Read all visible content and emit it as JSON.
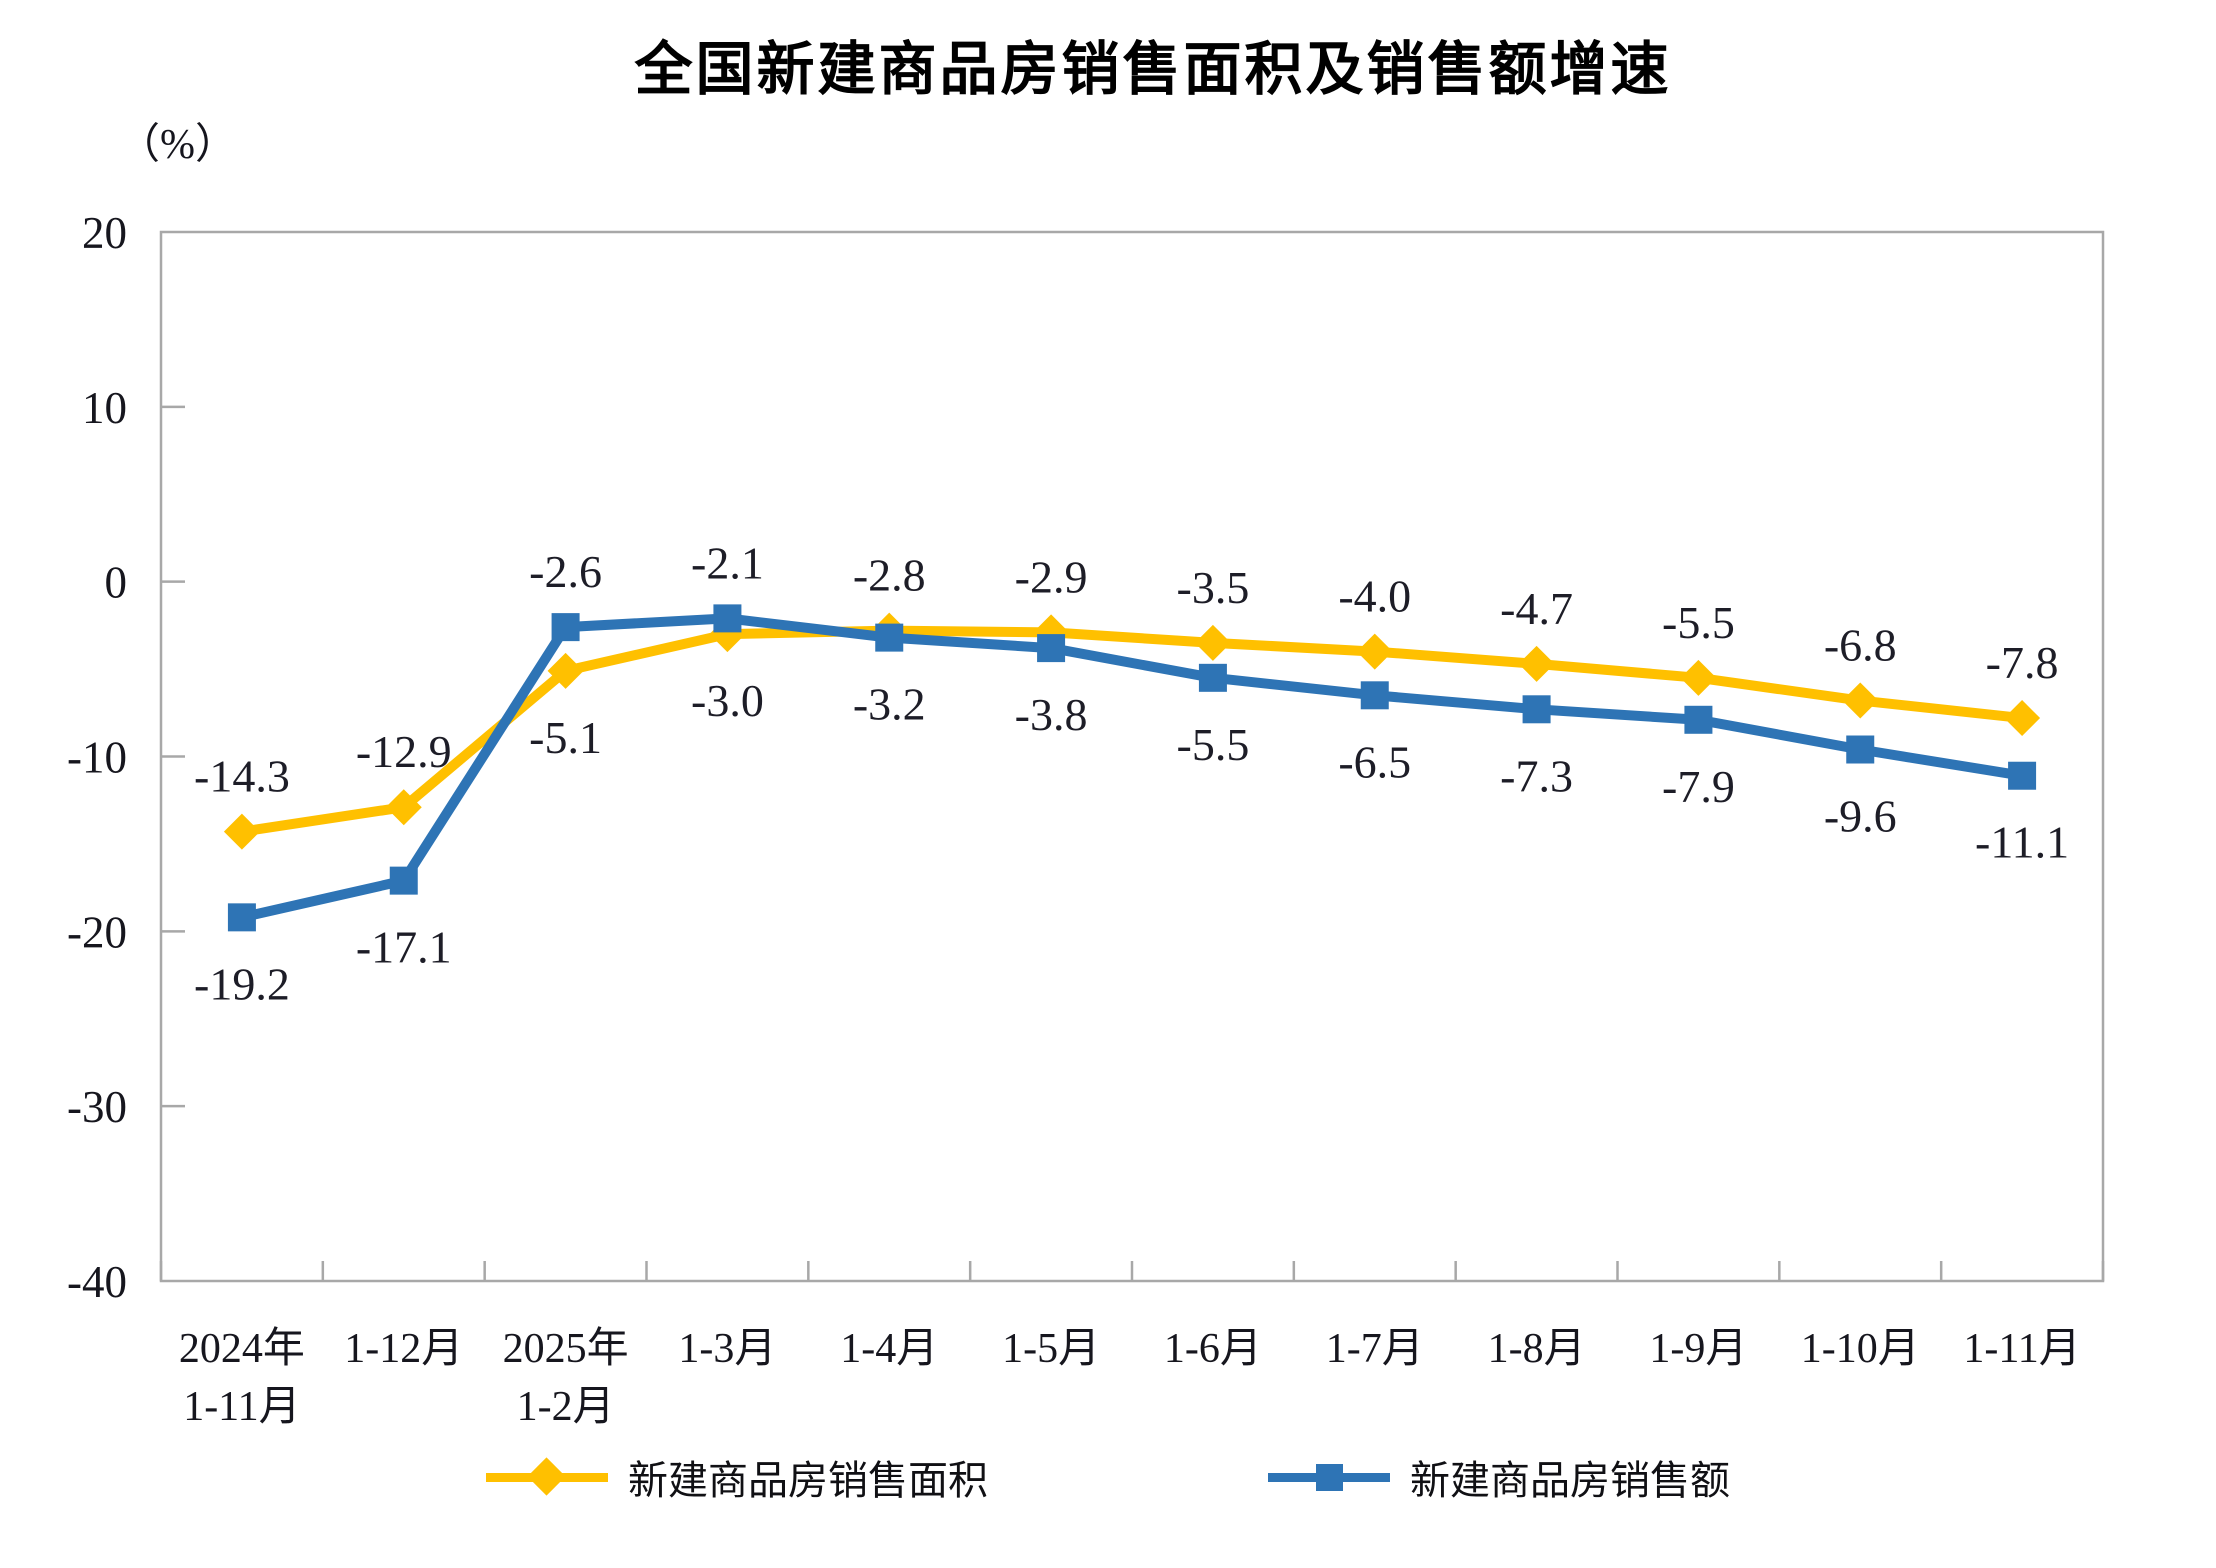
{
  "title": "全国新建商品房销售面积及销售额增速",
  "y_axis_unit": "（%）",
  "chart_data": {
    "type": "line",
    "title": "全国新建商品房销售面积及销售额增速",
    "ylabel": "（%）",
    "ylim": [
      -40,
      20
    ],
    "ytick_step": 10,
    "yticks": [
      20,
      10,
      0,
      -10,
      -20,
      -30,
      -40
    ],
    "grid": false,
    "legend_position": "bottom",
    "axis_color": "#A8A8A8",
    "label_color": "#1D1D27",
    "categories": [
      [
        "2024年",
        "1-11月"
      ],
      [
        "1-12月"
      ],
      [
        "2025年",
        "1-2月"
      ],
      [
        "1-3月"
      ],
      [
        "1-4月"
      ],
      [
        "1-5月"
      ],
      [
        "1-6月"
      ],
      [
        "1-7月"
      ],
      [
        "1-8月"
      ],
      [
        "1-9月"
      ],
      [
        "1-10月"
      ],
      [
        "1-11月"
      ]
    ],
    "series": [
      {
        "name": "新建商品房销售面积",
        "color": "#FFC000",
        "marker": "diamond",
        "values": [
          -14.3,
          -12.9,
          -5.1,
          -3.0,
          -2.8,
          -2.9,
          -3.5,
          -4.0,
          -4.7,
          -5.5,
          -6.8,
          -7.8
        ]
      },
      {
        "name": "新建商品房销售额",
        "color": "#2E74B5",
        "marker": "square",
        "values": [
          -19.2,
          -17.1,
          -2.6,
          -2.1,
          -3.2,
          -3.8,
          -5.5,
          -6.5,
          -7.3,
          -7.9,
          -9.6,
          -11.1
        ]
      }
    ]
  }
}
